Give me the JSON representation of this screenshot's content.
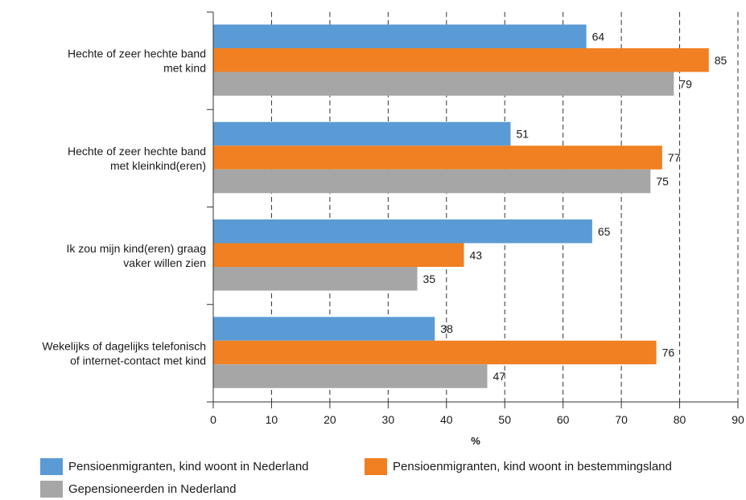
{
  "chart_data": {
    "type": "bar",
    "orientation": "horizontal",
    "categories": [
      [
        "Hechte of zeer hechte band",
        "met kind"
      ],
      [
        "Hechte of zeer hechte band",
        "met kleinkind(eren)"
      ],
      [
        "Ik zou mijn kind(eren) graag",
        "vaker willen zien"
      ],
      [
        "Wekelijks of dagelijks telefonisch",
        "of internet-contact met kind"
      ]
    ],
    "series": [
      {
        "name": "Pensioenmigranten, kind woont in Nederland",
        "color": "#5b9bd5",
        "values": [
          64,
          51,
          65,
          38
        ]
      },
      {
        "name": "Pensioenmigranten, kind woont in bestemmingsland",
        "color": "#f08021",
        "values": [
          85,
          77,
          43,
          76
        ]
      },
      {
        "name": "Gepensioneerden in Nederland",
        "color": "#a6a6a6",
        "values": [
          79,
          75,
          35,
          47
        ]
      }
    ],
    "xlabel": "%",
    "xlim": [
      0,
      90
    ],
    "xticks": [
      0,
      10,
      20,
      30,
      40,
      50,
      60,
      70,
      80,
      90
    ],
    "grid": "vertical dashed",
    "legend_position": "bottom"
  }
}
